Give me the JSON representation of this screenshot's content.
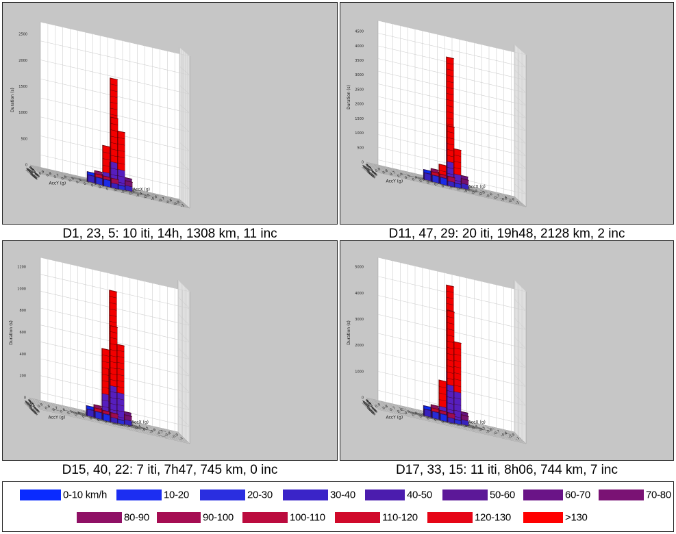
{
  "chart_data": [
    {
      "type": "bar3d",
      "title": "D1, 23, 5: 10 iti, 14h, 1308 km, 11 inc",
      "xlabel": "AccX (g)",
      "ylabel": "AccY (g)",
      "zlabel": "Duration (s)",
      "zlim": [
        0,
        2500
      ],
      "zticks": [
        "0",
        "500",
        "1000",
        "1500",
        "2000",
        "2500"
      ],
      "peak_bars": [
        {
          "x": 0.0,
          "y": 0.0,
          "value": 2080
        },
        {
          "x": 0.0,
          "y": 0.1,
          "value": 1340
        },
        {
          "x": 0.1,
          "y": 0.0,
          "value": 1100
        },
        {
          "x": -0.1,
          "y": 0.0,
          "value": 760
        },
        {
          "x": 0.0,
          "y": -0.1,
          "value": 450
        }
      ]
    },
    {
      "type": "bar3d",
      "title": "D11, 47, 29: 20 iti, 19h48, 2128 km, 2 inc",
      "xlabel": "AccX (g)",
      "ylabel": "AccY (g)",
      "zlabel": "Duration (s)",
      "zlim": [
        0,
        4500
      ],
      "zticks": [
        "0",
        "500",
        "1000",
        "1500",
        "2000",
        "2500",
        "3000",
        "3500",
        "4000",
        "4500"
      ],
      "peak_bars": [
        {
          "x": 0.0,
          "y": 0.0,
          "value": 4400
        },
        {
          "x": 0.0,
          "y": 0.1,
          "value": 2050
        },
        {
          "x": 0.1,
          "y": 0.0,
          "value": 1300
        },
        {
          "x": -0.1,
          "y": 0.0,
          "value": 650
        }
      ]
    },
    {
      "type": "bar3d",
      "title": "D15, 40, 22: 7 iti, 7h47, 745 km, 0 inc",
      "xlabel": "AccX (g)",
      "ylabel": "AccY (g)",
      "zlabel": "Duration (s)",
      "zlim": [
        0,
        1200
      ],
      "zticks": [
        "0",
        "200",
        "400",
        "600",
        "800",
        "1000",
        "1200"
      ],
      "peak_bars": [
        {
          "x": 0.0,
          "y": 0.0,
          "value": 1200
        },
        {
          "x": 0.0,
          "y": 0.1,
          "value": 880
        },
        {
          "x": 0.1,
          "y": 0.0,
          "value": 720
        },
        {
          "x": -0.1,
          "y": 0.0,
          "value": 650
        },
        {
          "x": 0.0,
          "y": -0.1,
          "value": 470
        }
      ]
    },
    {
      "type": "bar3d",
      "title": "D17, 33, 15: 11 iti, 8h06, 744 km, 7 inc",
      "xlabel": "AccX (g)",
      "ylabel": "AccY (g)",
      "zlabel": "Duration (s)",
      "zlim": [
        0,
        5000
      ],
      "zticks": [
        "0",
        "1000",
        "2000",
        "3000",
        "4000",
        "5000"
      ],
      "peak_bars": [
        {
          "x": 0.0,
          "y": 0.0,
          "value": 5200
        },
        {
          "x": 0.0,
          "y": 0.1,
          "value": 4250
        },
        {
          "x": 0.1,
          "y": 0.0,
          "value": 3100
        },
        {
          "x": -0.1,
          "y": 0.0,
          "value": 1500
        }
      ]
    }
  ],
  "legend": {
    "items": [
      {
        "label": "0-10 km/h",
        "color": "#0a2bff"
      },
      {
        "label": "10-20",
        "color": "#1c2ef2"
      },
      {
        "label": "20-30",
        "color": "#2a2ee0"
      },
      {
        "label": "30-40",
        "color": "#3a24c8"
      },
      {
        "label": "40-50",
        "color": "#4b1cae"
      },
      {
        "label": "50-60",
        "color": "#5c1898"
      },
      {
        "label": "60-70",
        "color": "#6a1487"
      },
      {
        "label": "70-80",
        "color": "#7a1274"
      },
      {
        "label": "80-90",
        "color": "#8f1065"
      },
      {
        "label": "90-100",
        "color": "#a50d52"
      },
      {
        "label": "100-110",
        "color": "#bb0b3e"
      },
      {
        "label": "110-120",
        "color": "#d0092a"
      },
      {
        "label": "120-130",
        "color": "#e60516"
      },
      {
        "label": ">130",
        "color": "#ff0000"
      }
    ]
  },
  "tick_labels": {
    "acc": [
      "-1",
      "-0.9",
      "-0.8",
      "-0.7",
      "-0.6",
      "-0.5",
      "-0.4",
      "-0.3",
      "-0.2",
      "-0.1",
      "0",
      "0.1",
      "0.2",
      "0.3",
      "0.4",
      "0.5",
      "0.6",
      "0.7",
      "0.8",
      "0.9",
      "1"
    ]
  },
  "colors": {
    "wall_bg": "#ffffff",
    "panel_bg": "#c6c6c6",
    "floor_cell": "#000000",
    "grid": "#cfcfcf"
  }
}
